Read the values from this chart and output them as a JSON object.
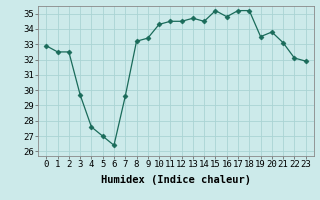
{
  "x": [
    0,
    1,
    2,
    3,
    4,
    5,
    6,
    7,
    8,
    9,
    10,
    11,
    12,
    13,
    14,
    15,
    16,
    17,
    18,
    19,
    20,
    21,
    22,
    23
  ],
  "y": [
    32.9,
    32.5,
    32.5,
    29.7,
    27.6,
    27.0,
    26.4,
    29.6,
    33.2,
    33.4,
    34.3,
    34.5,
    34.5,
    34.7,
    34.5,
    35.2,
    34.8,
    35.2,
    35.2,
    33.5,
    33.8,
    33.1,
    32.1,
    31.9
  ],
  "line_color": "#1a6b5a",
  "marker": "D",
  "marker_size": 2.5,
  "bg_color": "#cceaea",
  "grid_color": "#aad4d4",
  "tick_color": "#1a1a1a",
  "xlabel": "Humidex (Indice chaleur)",
  "ylim_min": 25.7,
  "ylim_max": 35.5,
  "yticks": [
    26,
    27,
    28,
    29,
    30,
    31,
    32,
    33,
    34,
    35
  ],
  "xticks": [
    0,
    1,
    2,
    3,
    4,
    5,
    6,
    7,
    8,
    9,
    10,
    11,
    12,
    13,
    14,
    15,
    16,
    17,
    18,
    19,
    20,
    21,
    22,
    23
  ],
  "xlabel_fontsize": 7.5,
  "tick_fontsize": 6.5
}
